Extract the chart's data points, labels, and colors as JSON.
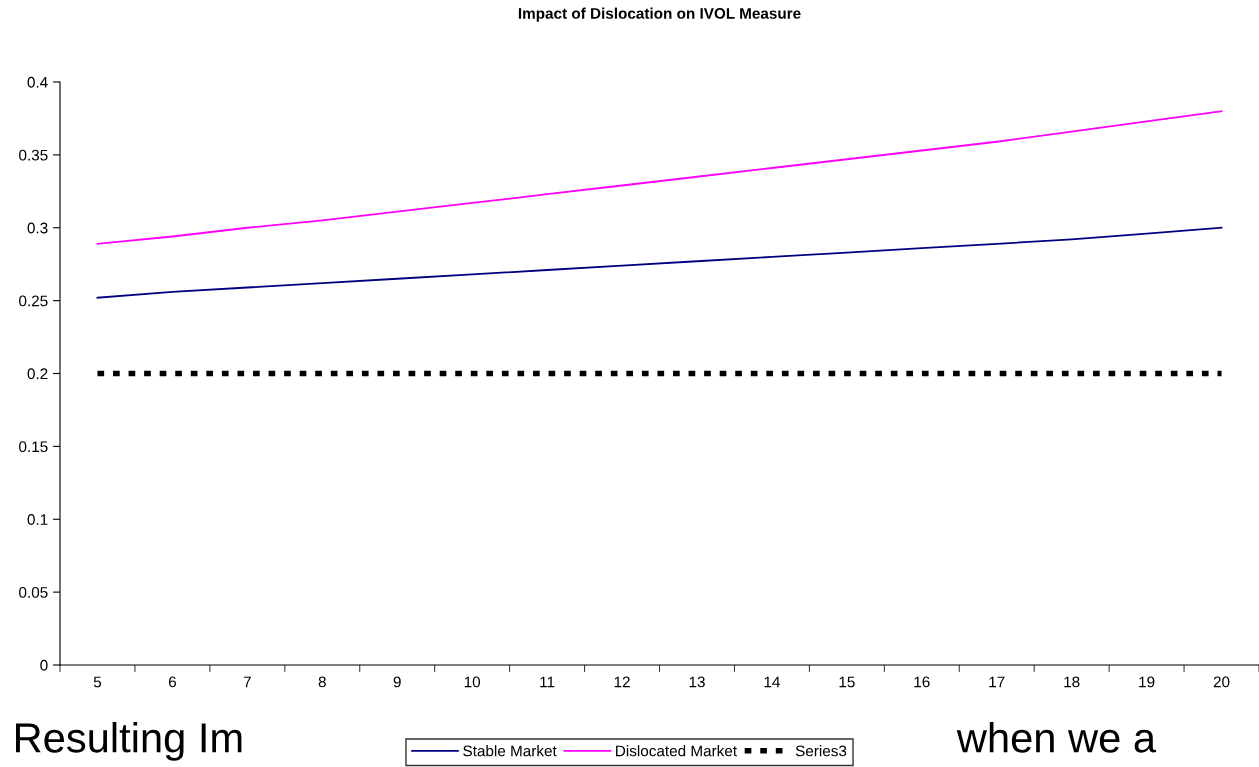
{
  "chart_data": {
    "type": "line",
    "title": "Impact of Dislocation on IVOL Measure",
    "categories": [
      "5",
      "6",
      "7",
      "8",
      "9",
      "10",
      "11",
      "12",
      "13",
      "14",
      "15",
      "16",
      "17",
      "18",
      "19",
      "20"
    ],
    "series": [
      {
        "name": "Stable Market",
        "color": "#000080",
        "line_style": "solid",
        "values": [
          0.252,
          0.256,
          0.259,
          0.262,
          0.265,
          0.268,
          0.271,
          0.274,
          0.277,
          0.28,
          0.283,
          0.286,
          0.289,
          0.292,
          0.296,
          0.3
        ]
      },
      {
        "name": "Dislocated Market",
        "color": "#ff00ff",
        "line_style": "solid",
        "values": [
          0.289,
          0.294,
          0.3,
          0.305,
          0.311,
          0.317,
          0.323,
          0.329,
          0.335,
          0.341,
          0.347,
          0.353,
          0.359,
          0.366,
          0.373,
          0.38
        ]
      },
      {
        "name": "Series3",
        "color": "#000000",
        "line_style": "dashed",
        "values": [
          0.2,
          0.2,
          0.2,
          0.2,
          0.2,
          0.2,
          0.2,
          0.2,
          0.2,
          0.2,
          0.2,
          0.2,
          0.2,
          0.2,
          0.2,
          0.2
        ]
      }
    ],
    "ylim": [
      0,
      0.4
    ],
    "yticks": [
      0,
      0.05,
      0.1,
      0.15,
      0.2,
      0.25,
      0.3,
      0.35,
      0.4
    ],
    "grid": false,
    "legend": "bottom",
    "marker": "none",
    "annotations": [
      "Resulting Im",
      "when we a"
    ]
  }
}
